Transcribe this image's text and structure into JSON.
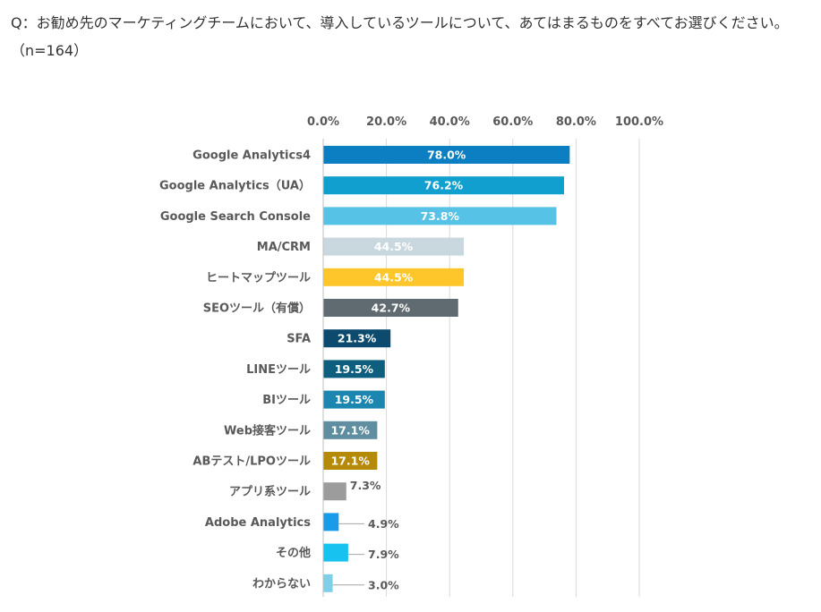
{
  "question": {
    "text": "Q：お勧め先のマーケティングチームにおいて、導入しているツールについて、あてはまるものをすべてお選びください。（n=164）"
  },
  "colors": {
    "text": "#595959",
    "grid": "#d9d9d9"
  },
  "chart_data": {
    "type": "bar",
    "orientation": "horizontal",
    "title": "",
    "xlabel": "",
    "ylabel": "",
    "xlim": [
      0,
      100
    ],
    "tick_labels": [
      "0.0%",
      "20.0%",
      "40.0%",
      "60.0%",
      "80.0%",
      "100.0%"
    ],
    "ticks": [
      0,
      20,
      40,
      60,
      80,
      100
    ],
    "grid": true,
    "legend": "none",
    "categories": [
      "Google Analytics4",
      "Google Analytics（UA）",
      "Google Search Console",
      "MA/CRM",
      "ヒートマップツール",
      "SEOツール（有償）",
      "SFA",
      "LINEツール",
      "BIツール",
      "Web接客ツール",
      "ABテスト/LPOツール",
      "アプリ系ツール",
      "Adobe Analytics",
      "その他",
      "わからない"
    ],
    "values": [
      78.0,
      76.2,
      73.8,
      44.5,
      44.5,
      42.7,
      21.3,
      19.5,
      19.5,
      17.1,
      17.1,
      7.3,
      4.9,
      7.9,
      3.0
    ],
    "value_labels": [
      "78.0%",
      "76.2%",
      "73.8%",
      "44.5%",
      "44.5%",
      "42.7%",
      "21.3%",
      "19.5%",
      "19.5%",
      "17.1%",
      "17.1%",
      "7.3%",
      "4.9%",
      "7.9%",
      "3.0%"
    ],
    "bar_colors": [
      "#0b7fc1",
      "#119fcf",
      "#56c2e6",
      "#c9d7df",
      "#ffc62b",
      "#5f6b70",
      "#0d4b6e",
      "#0e5f7e",
      "#1c86b1",
      "#5f8ea1",
      "#b58a09",
      "#9c9c9c",
      "#1a9bea",
      "#18c2f0",
      "#7fcfe9"
    ],
    "label_positions": [
      "inside",
      "inside",
      "inside",
      "inside",
      "inside",
      "inside",
      "inside",
      "inside",
      "inside",
      "inside",
      "inside",
      "outside",
      "outside-leader",
      "outside-leader",
      "outside-leader"
    ]
  }
}
